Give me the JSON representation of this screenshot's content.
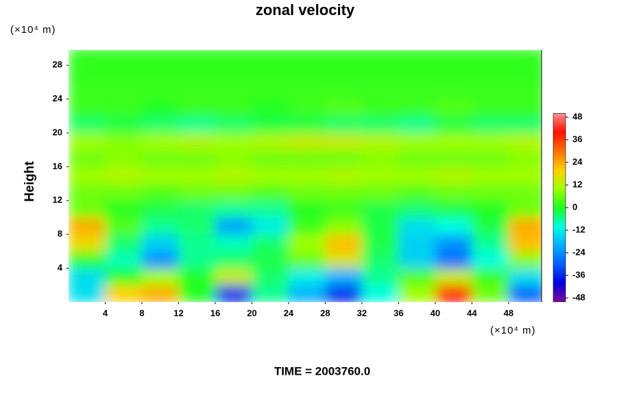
{
  "chart_data": {
    "type": "contour",
    "title": "zonal velocity",
    "ylabel": "Height",
    "y_unit_label": "(×10⁴ m)",
    "x_unit_label": "(×10⁴ m)",
    "footer": "TIME = 2003760.0",
    "xlim": [
      0,
      51.6
    ],
    "ylim": [
      0,
      29.8
    ],
    "xticks": [
      4,
      8,
      12,
      16,
      20,
      24,
      28,
      32,
      36,
      40,
      44,
      48
    ],
    "yticks": [
      4,
      8,
      12,
      16,
      20,
      24,
      28
    ],
    "x": [
      2,
      6,
      10,
      14,
      18,
      22,
      26,
      30,
      34,
      38,
      42,
      46,
      50
    ],
    "y": [
      1,
      3,
      5,
      7,
      9,
      11,
      13,
      15,
      17,
      19,
      21,
      23,
      25,
      27,
      29
    ],
    "z": [
      [
        -14,
        20,
        24,
        0,
        -36,
        -6,
        -20,
        -36,
        -10,
        10,
        40,
        6,
        -30
      ],
      [
        -14,
        0,
        10,
        0,
        14,
        -4,
        -12,
        -20,
        -6,
        4,
        14,
        2,
        -14
      ],
      [
        0,
        -8,
        -24,
        -6,
        -4,
        -2,
        6,
        16,
        -4,
        -16,
        -28,
        -10,
        8
      ],
      [
        18,
        -4,
        -16,
        -6,
        -8,
        -4,
        10,
        22,
        -2,
        -16,
        -24,
        -6,
        22
      ],
      [
        24,
        4,
        -6,
        -4,
        -22,
        -12,
        2,
        8,
        -2,
        -14,
        -10,
        -2,
        24
      ],
      [
        6,
        0,
        -2,
        -4,
        -6,
        -6,
        0,
        2,
        -2,
        -4,
        -2,
        0,
        6
      ],
      [
        6,
        6,
        4,
        6,
        6,
        4,
        6,
        6,
        6,
        4,
        6,
        6,
        6
      ],
      [
        10,
        12,
        10,
        10,
        12,
        10,
        10,
        12,
        10,
        10,
        12,
        10,
        10
      ],
      [
        6,
        8,
        6,
        6,
        8,
        6,
        6,
        6,
        8,
        6,
        6,
        6,
        8
      ],
      [
        10,
        8,
        10,
        12,
        10,
        12,
        14,
        14,
        12,
        10,
        10,
        10,
        12
      ],
      [
        -4,
        -2,
        -4,
        -6,
        -4,
        -2,
        -2,
        -4,
        -4,
        -6,
        -2,
        -4,
        -4
      ],
      [
        2,
        2,
        0,
        2,
        2,
        0,
        2,
        4,
        2,
        2,
        4,
        2,
        2
      ],
      [
        2,
        2,
        2,
        2,
        2,
        2,
        2,
        2,
        2,
        2,
        2,
        2,
        2
      ],
      [
        1,
        1,
        1,
        1,
        1,
        1,
        1,
        1,
        1,
        1,
        1,
        1,
        1
      ],
      [
        1,
        1,
        1,
        1,
        1,
        1,
        1,
        1,
        1,
        1,
        1,
        1,
        1
      ]
    ],
    "clim": [
      -50,
      50
    ],
    "colorbar_ticks": [
      48,
      36,
      24,
      12,
      0,
      -12,
      -24,
      -36,
      -48
    ],
    "colors": [
      "#8000a0",
      "#0000e0",
      "#0060ff",
      "#00b0ff",
      "#00ffe0",
      "#20ff20",
      "#a0ff00",
      "#ffd000",
      "#ff7000",
      "#ff1000",
      "#ff9090"
    ]
  }
}
